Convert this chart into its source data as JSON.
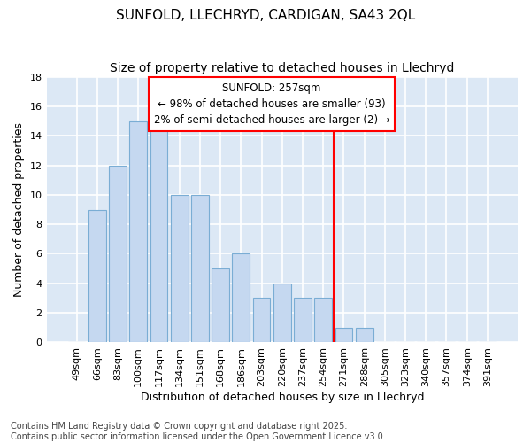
{
  "title1": "SUNFOLD, LLECHRYD, CARDIGAN, SA43 2QL",
  "title2": "Size of property relative to detached houses in Llechryd",
  "xlabel": "Distribution of detached houses by size in Llechryd",
  "ylabel": "Number of detached properties",
  "bins": [
    "49sqm",
    "66sqm",
    "83sqm",
    "100sqm",
    "117sqm",
    "134sqm",
    "151sqm",
    "168sqm",
    "186sqm",
    "203sqm",
    "220sqm",
    "237sqm",
    "254sqm",
    "271sqm",
    "288sqm",
    "305sqm",
    "323sqm",
    "340sqm",
    "357sqm",
    "374sqm",
    "391sqm"
  ],
  "values": [
    0,
    9,
    12,
    15,
    15,
    10,
    10,
    5,
    6,
    3,
    4,
    3,
    3,
    1,
    1,
    0,
    0,
    0,
    0,
    0,
    0
  ],
  "bar_color": "#c5d8f0",
  "bar_edge_color": "#7aadd4",
  "background_color": "#dce8f5",
  "grid_color": "#ffffff",
  "red_line_x": 12.5,
  "annotation_title": "SUNFOLD: 257sqm",
  "annotation_line1": "← 98% of detached houses are smaller (93)",
  "annotation_line2": "2% of semi-detached houses are larger (2) →",
  "ylim": [
    0,
    18
  ],
  "yticks": [
    0,
    2,
    4,
    6,
    8,
    10,
    12,
    14,
    16,
    18
  ],
  "footer": "Contains HM Land Registry data © Crown copyright and database right 2025.\nContains public sector information licensed under the Open Government Licence v3.0.",
  "title_fontsize": 11,
  "subtitle_fontsize": 10,
  "axis_label_fontsize": 9,
  "tick_fontsize": 8,
  "annotation_fontsize": 8.5,
  "footer_fontsize": 7
}
